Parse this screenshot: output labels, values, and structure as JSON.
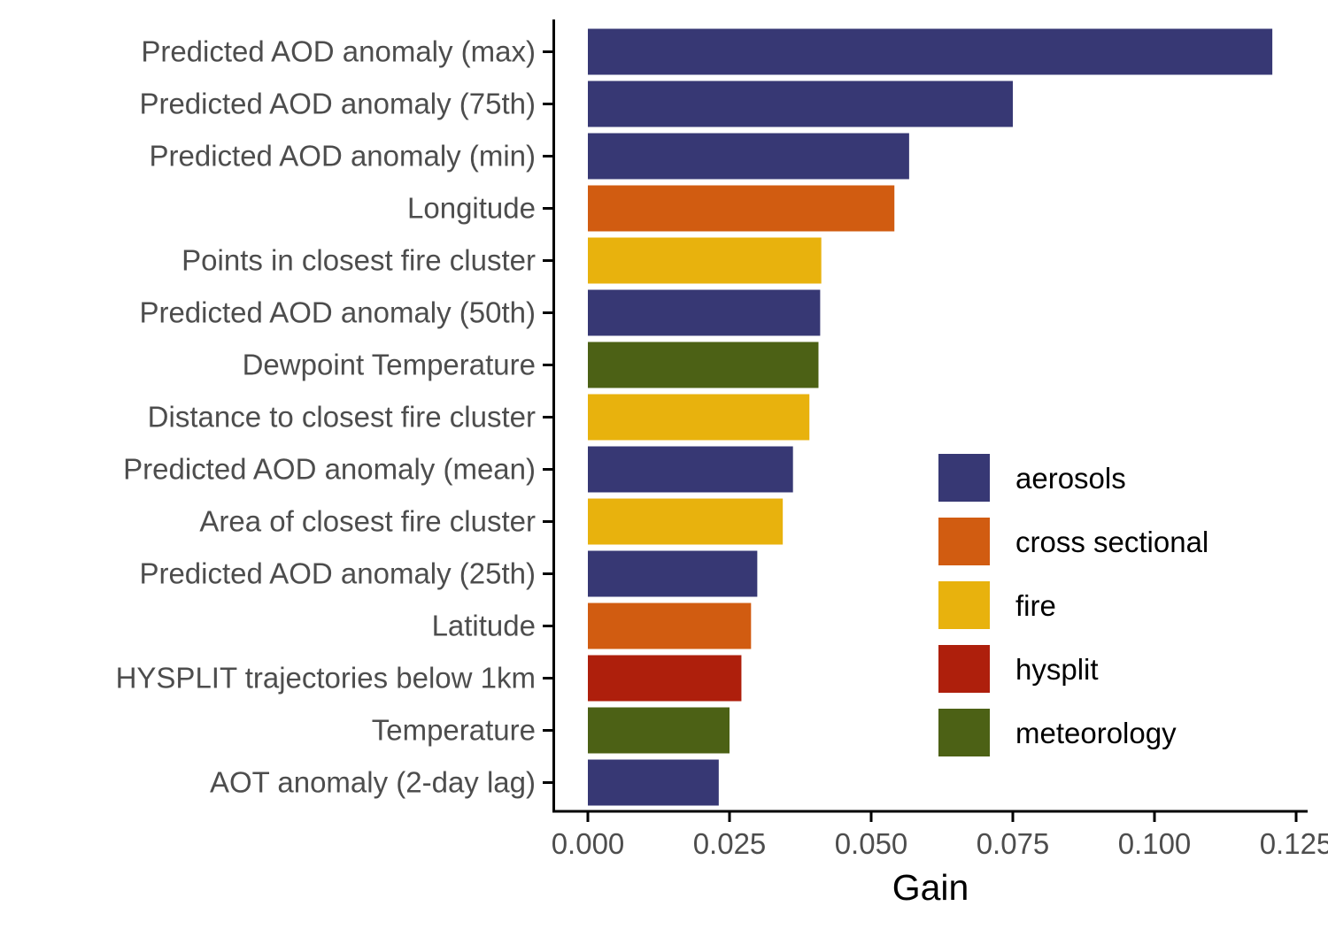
{
  "chart_data": {
    "type": "bar",
    "orientation": "horizontal",
    "xlabel": "Gain",
    "ylabel": "",
    "xlim": [
      -0.006,
      0.125
    ],
    "xticks": [
      0.0,
      0.025,
      0.05,
      0.075,
      0.1,
      0.125
    ],
    "xtick_labels": [
      "0.000",
      "0.025",
      "0.050",
      "0.075",
      "0.100",
      "0.125"
    ],
    "grid": false,
    "legend_position": "bottom-right",
    "legend": [
      {
        "name": "aerosols",
        "color": "#373874"
      },
      {
        "name": "cross sectional",
        "color": "#D15C11"
      },
      {
        "name": "fire",
        "color": "#E8B20D"
      },
      {
        "name": "hysplit",
        "color": "#AE1F0C"
      },
      {
        "name": "meteorology",
        "color": "#4C6115"
      }
    ],
    "categories": [
      "Predicted AOD anomaly (max)",
      "Predicted AOD anomaly (75th)",
      "Predicted AOD anomaly (min)",
      "Longitude",
      "Points in closest fire cluster",
      "Predicted AOD anomaly (50th)",
      "Dewpoint Temperature",
      "Distance to closest fire cluster",
      "Predicted AOD anomaly (mean)",
      "Area of closest fire cluster",
      "Predicted AOD anomaly (25th)",
      "Latitude",
      "HYSPLIT trajectories below 1km",
      "Temperature",
      "AOT anomaly (2-day lag)"
    ],
    "values": [
      0.1208,
      0.075,
      0.0567,
      0.0541,
      0.0412,
      0.041,
      0.0407,
      0.0391,
      0.0362,
      0.0344,
      0.0299,
      0.0288,
      0.0271,
      0.025,
      0.0231
    ],
    "groups": [
      "aerosols",
      "aerosols",
      "aerosols",
      "cross sectional",
      "fire",
      "aerosols",
      "meteorology",
      "fire",
      "aerosols",
      "fire",
      "aerosols",
      "cross sectional",
      "hysplit",
      "meteorology",
      "aerosols"
    ]
  }
}
